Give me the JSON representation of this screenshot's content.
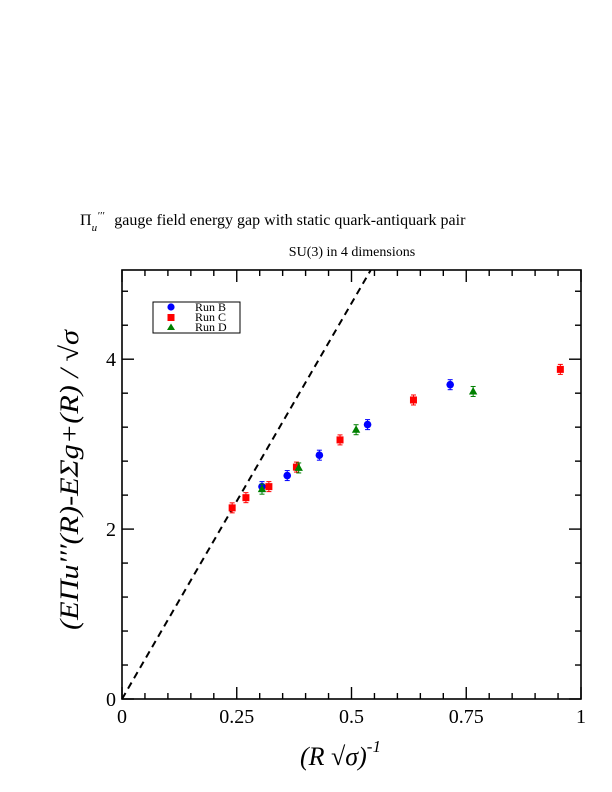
{
  "chart_data": {
    "type": "scatter",
    "title_symbol": "Π",
    "title_sub": "u",
    "title_primes": "′′′",
    "title_text": "gauge field energy gap with static quark-antiquark pair",
    "subtitle": "SU(3) in 4 dimensions",
    "xlabel": "(R √σ)",
    "xlabel_exp": "-1",
    "ylabel": "(EΠu′′′(R)-EΣg+(R) / √σ",
    "xlim": [
      0,
      1
    ],
    "ylim": [
      0,
      5.05
    ],
    "xticks": [
      {
        "value": 0,
        "label": "0"
      },
      {
        "value": 0.25,
        "label": "0.25"
      },
      {
        "value": 0.5,
        "label": "0.5"
      },
      {
        "value": 0.75,
        "label": "0.75"
      },
      {
        "value": 1,
        "label": "1"
      }
    ],
    "yticks": [
      {
        "value": 0,
        "label": "0"
      },
      {
        "value": 2,
        "label": "2"
      },
      {
        "value": 4,
        "label": "4"
      }
    ],
    "legend_position": "top-left",
    "series": [
      {
        "name": "Run B",
        "marker": "circle",
        "color": "#0000ff",
        "points": [
          [
            0.305,
            2.5
          ],
          [
            0.36,
            2.63
          ],
          [
            0.43,
            2.87
          ],
          [
            0.535,
            3.23
          ],
          [
            0.715,
            3.7
          ]
        ]
      },
      {
        "name": "Run C",
        "marker": "square",
        "color": "#ff0000",
        "points": [
          [
            0.24,
            2.25
          ],
          [
            0.27,
            2.37
          ],
          [
            0.32,
            2.5
          ],
          [
            0.38,
            2.73
          ],
          [
            0.475,
            3.05
          ],
          [
            0.635,
            3.52
          ],
          [
            0.955,
            3.88
          ]
        ]
      },
      {
        "name": "Run D",
        "marker": "triangle",
        "color": "#008000",
        "points": [
          [
            0.305,
            2.47
          ],
          [
            0.385,
            2.72
          ],
          [
            0.51,
            3.17
          ],
          [
            0.765,
            3.62
          ]
        ]
      }
    ],
    "reference_line": {
      "style": "dashed",
      "color": "#000000",
      "from": [
        0,
        0
      ],
      "to": [
        0.542,
        5.05
      ]
    }
  }
}
